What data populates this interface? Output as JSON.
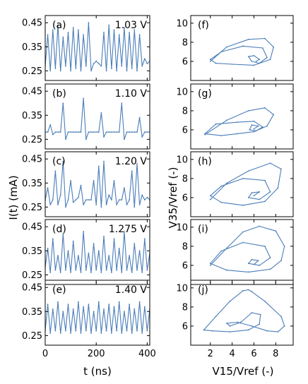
{
  "chart_data": [
    {
      "type": "line",
      "panel": "(a)",
      "annotation": "1.03 V",
      "xlim": [
        0,
        410
      ],
      "ylim": [
        0.21,
        0.48
      ],
      "yticks": [
        "0.45",
        "0.35",
        "0.25"
      ],
      "xticks": [],
      "ylabel": "",
      "xlabel": "",
      "series": [
        {
          "x": [
            0,
            10,
            20,
            30,
            40,
            50,
            60,
            70,
            80,
            90,
            100,
            110,
            120,
            130,
            140,
            150,
            160,
            170,
            180,
            190,
            200,
            210,
            220,
            230,
            240,
            250,
            260,
            270,
            280,
            290,
            300,
            310,
            320,
            330,
            340,
            350,
            360,
            370,
            380,
            390,
            400,
            410
          ],
          "y": [
            0.27,
            0.4,
            0.25,
            0.42,
            0.26,
            0.44,
            0.25,
            0.39,
            0.27,
            0.41,
            0.25,
            0.43,
            0.26,
            0.42,
            0.25,
            0.4,
            0.27,
            0.45,
            0.25,
            0.28,
            0.29,
            0.28,
            0.27,
            0.41,
            0.25,
            0.44,
            0.26,
            0.42,
            0.25,
            0.4,
            0.27,
            0.43,
            0.25,
            0.41,
            0.26,
            0.42,
            0.25,
            0.4,
            0.27,
            0.3,
            0.28,
            0.29
          ]
        }
      ]
    },
    {
      "type": "line",
      "panel": "(b)",
      "annotation": "1.10 V",
      "xlim": [
        0,
        410
      ],
      "ylim": [
        0.21,
        0.48
      ],
      "yticks": [
        "0.45",
        "0.35",
        "0.25"
      ],
      "xticks": [],
      "ylabel": "",
      "xlabel": "",
      "series": [
        {
          "x": [
            0,
            10,
            20,
            30,
            40,
            50,
            60,
            70,
            80,
            90,
            100,
            110,
            120,
            130,
            140,
            150,
            160,
            170,
            180,
            190,
            200,
            210,
            220,
            230,
            240,
            250,
            260,
            270,
            280,
            290,
            300,
            310,
            320,
            330,
            340,
            350,
            360,
            370,
            380,
            390,
            400,
            410
          ],
          "y": [
            0.28,
            0.28,
            0.31,
            0.27,
            0.28,
            0.28,
            0.28,
            0.4,
            0.25,
            0.28,
            0.28,
            0.28,
            0.28,
            0.28,
            0.28,
            0.42,
            0.25,
            0.28,
            0.28,
            0.28,
            0.28,
            0.28,
            0.36,
            0.26,
            0.28,
            0.28,
            0.28,
            0.28,
            0.28,
            0.28,
            0.4,
            0.25,
            0.28,
            0.28,
            0.28,
            0.28,
            0.28,
            0.34,
            0.26,
            0.28,
            0.28,
            0.28
          ]
        }
      ]
    },
    {
      "type": "line",
      "panel": "(c)",
      "annotation": "1.20 V",
      "xlim": [
        0,
        410
      ],
      "ylim": [
        0.21,
        0.48
      ],
      "yticks": [
        "0.45",
        "0.35",
        "0.25"
      ],
      "xticks": [],
      "ylabel": "",
      "xlabel": "",
      "series": [
        {
          "x": [
            0,
            10,
            20,
            30,
            40,
            50,
            60,
            70,
            80,
            90,
            100,
            110,
            120,
            130,
            140,
            150,
            160,
            170,
            180,
            190,
            200,
            210,
            220,
            230,
            240,
            250,
            260,
            270,
            280,
            290,
            300,
            310,
            320,
            330,
            340,
            350,
            360,
            370,
            380,
            390,
            400,
            410
          ],
          "y": [
            0.28,
            0.33,
            0.26,
            0.28,
            0.4,
            0.26,
            0.3,
            0.44,
            0.25,
            0.28,
            0.36,
            0.27,
            0.28,
            0.29,
            0.34,
            0.26,
            0.28,
            0.28,
            0.28,
            0.36,
            0.26,
            0.42,
            0.25,
            0.44,
            0.26,
            0.3,
            0.28,
            0.36,
            0.26,
            0.28,
            0.28,
            0.33,
            0.26,
            0.28,
            0.4,
            0.25,
            0.43,
            0.26,
            0.3,
            0.28,
            0.29,
            0.28
          ]
        }
      ]
    },
    {
      "type": "line",
      "panel": "(d)",
      "annotation": "1.275 V",
      "xlim": [
        0,
        410
      ],
      "ylim": [
        0.21,
        0.48
      ],
      "yticks": [
        "0.45",
        "0.35",
        "0.25"
      ],
      "xticks": [],
      "ylabel": "",
      "xlabel": "",
      "series": [
        {
          "x": [
            0,
            10,
            20,
            30,
            40,
            50,
            60,
            70,
            80,
            90,
            100,
            110,
            120,
            130,
            140,
            150,
            160,
            170,
            180,
            190,
            200,
            210,
            220,
            230,
            240,
            250,
            260,
            270,
            280,
            290,
            300,
            310,
            320,
            330,
            340,
            350,
            360,
            370,
            380,
            390,
            400,
            410
          ],
          "y": [
            0.28,
            0.36,
            0.26,
            0.4,
            0.27,
            0.33,
            0.26,
            0.42,
            0.27,
            0.35,
            0.26,
            0.39,
            0.27,
            0.33,
            0.26,
            0.43,
            0.27,
            0.34,
            0.26,
            0.38,
            0.27,
            0.35,
            0.26,
            0.41,
            0.27,
            0.33,
            0.26,
            0.4,
            0.27,
            0.36,
            0.26,
            0.43,
            0.27,
            0.33,
            0.26,
            0.38,
            0.27,
            0.35,
            0.26,
            0.4,
            0.27,
            0.34
          ]
        }
      ]
    },
    {
      "type": "line",
      "panel": "(e)",
      "annotation": "1.40 V",
      "xlim": [
        0,
        410
      ],
      "ylim": [
        0.21,
        0.48
      ],
      "yticks": [
        "0.45",
        "0.35",
        "0.25"
      ],
      "xticks": [
        "0",
        "200",
        "400"
      ],
      "ylabel": "",
      "xlabel": "t (ns)",
      "series": [
        {
          "x": [
            0,
            10,
            20,
            30,
            40,
            50,
            60,
            70,
            80,
            90,
            100,
            110,
            120,
            130,
            140,
            150,
            160,
            170,
            180,
            190,
            200,
            210,
            220,
            230,
            240,
            250,
            260,
            270,
            280,
            290,
            300,
            310,
            320,
            330,
            340,
            350,
            360,
            370,
            380,
            390,
            400,
            410
          ],
          "y": [
            0.27,
            0.38,
            0.26,
            0.36,
            0.27,
            0.39,
            0.26,
            0.35,
            0.27,
            0.38,
            0.26,
            0.36,
            0.27,
            0.39,
            0.26,
            0.37,
            0.27,
            0.38,
            0.26,
            0.35,
            0.27,
            0.39,
            0.26,
            0.36,
            0.27,
            0.38,
            0.26,
            0.37,
            0.27,
            0.39,
            0.26,
            0.35,
            0.27,
            0.38,
            0.26,
            0.36,
            0.27,
            0.39,
            0.26,
            0.37,
            0.27,
            0.36
          ]
        }
      ]
    },
    {
      "type": "line",
      "panel": "(f)",
      "xlim": [
        0.2,
        9.6
      ],
      "ylim": [
        4.0,
        10.8
      ],
      "yticks": [
        "10",
        "8",
        "6"
      ],
      "xticks": [],
      "xlabel": "",
      "ylabel": "",
      "series": [
        {
          "x": [
            2.0,
            3.5,
            5.5,
            7.0,
            7.8,
            7.5,
            6.0,
            4.0,
            2.5,
            2.0,
            3.0,
            5.0,
            6.8,
            7.2,
            6.5,
            5.8,
            5.5,
            6.0,
            6.5,
            6.2
          ],
          "y": [
            6.0,
            7.5,
            8.3,
            8.4,
            7.5,
            6.2,
            5.6,
            5.7,
            5.8,
            6.2,
            7.0,
            7.6,
            7.4,
            6.4,
            5.8,
            6.0,
            6.5,
            6.6,
            6.2,
            6.0
          ]
        }
      ]
    },
    {
      "type": "line",
      "panel": "(g)",
      "xlim": [
        0.2,
        9.6
      ],
      "ylim": [
        4.0,
        10.8
      ],
      "yticks": [
        "10",
        "8",
        "6"
      ],
      "xticks": [],
      "xlabel": "",
      "ylabel": "",
      "series": [
        {
          "x": [
            1.5,
            3.5,
            5.5,
            7.0,
            7.8,
            7.2,
            6.0,
            4.5,
            3.0,
            1.5,
            2.5,
            4.5,
            6.0,
            6.8,
            6.2,
            5.6,
            5.8,
            6.4,
            6.0
          ],
          "y": [
            5.5,
            7.0,
            8.0,
            8.3,
            7.6,
            6.4,
            5.8,
            5.6,
            5.4,
            5.6,
            6.6,
            6.8,
            6.9,
            6.3,
            5.9,
            6.0,
            6.5,
            6.4,
            6.1
          ]
        }
      ]
    },
    {
      "type": "line",
      "panel": "(h)",
      "xlim": [
        0.2,
        9.6
      ],
      "ylim": [
        4.0,
        10.8
      ],
      "yticks": [
        "10",
        "8",
        "6"
      ],
      "xticks": [],
      "xlabel": "",
      "ylabel": "V35/Vref (-)",
      "series": [
        {
          "x": [
            2.0,
            3.5,
            5.5,
            7.5,
            8.5,
            8.2,
            7.0,
            5.0,
            3.0,
            2.0,
            3.0,
            5.0,
            7.0,
            7.5,
            6.5,
            5.5,
            5.8,
            6.5,
            6.0
          ],
          "y": [
            5.8,
            7.5,
            8.8,
            9.6,
            9.0,
            7.0,
            5.6,
            5.2,
            5.5,
            6.2,
            7.2,
            8.0,
            7.8,
            6.6,
            5.8,
            6.0,
            6.5,
            6.6,
            6.2
          ]
        }
      ]
    },
    {
      "type": "line",
      "panel": "(i)",
      "xlim": [
        0.2,
        9.6
      ],
      "ylim": [
        4.0,
        10.8
      ],
      "yticks": [
        "10",
        "8",
        "6"
      ],
      "xticks": [],
      "xlabel": "",
      "ylabel": "",
      "series": [
        {
          "x": [
            2.0,
            3.5,
            5.0,
            6.5,
            8.0,
            8.8,
            8.5,
            7.5,
            5.5,
            3.5,
            2.0,
            3.0,
            5.0,
            7.0,
            7.5,
            6.5,
            5.5,
            5.8,
            6.4,
            6.0
          ],
          "y": [
            6.0,
            7.8,
            9.5,
            10.1,
            9.6,
            8.0,
            6.5,
            5.6,
            5.3,
            5.5,
            6.2,
            7.5,
            8.4,
            8.0,
            6.8,
            6.0,
            6.2,
            6.6,
            6.5,
            6.1
          ]
        }
      ]
    },
    {
      "type": "line",
      "panel": "(j)",
      "xlim": [
        0.2,
        9.6
      ],
      "ylim": [
        4.0,
        10.8
      ],
      "yticks": [
        "10",
        "8",
        "6"
      ],
      "xticks": [
        "2",
        "4",
        "6",
        "8"
      ],
      "xlabel": "V15/Vref (-)",
      "ylabel": "",
      "series": [
        {
          "x": [
            1.4,
            2.5,
            3.8,
            5.0,
            5.5,
            5.8,
            7.0,
            8.5,
            8.8,
            8.2,
            7.2,
            5.8,
            4.5,
            3.5,
            3.8,
            4.8,
            5.8,
            6.6,
            6.5,
            5.5,
            3.8,
            2.2,
            1.4
          ],
          "y": [
            5.6,
            7.0,
            8.6,
            9.7,
            9.8,
            9.6,
            8.6,
            7.0,
            6.0,
            5.4,
            5.5,
            6.0,
            6.4,
            6.3,
            6.0,
            6.4,
            7.4,
            7.2,
            6.2,
            5.6,
            5.4,
            5.5,
            5.6
          ]
        }
      ]
    }
  ],
  "shared": {
    "ylabel_left": "I(t) (mA)",
    "line_color": "#4a7db8"
  }
}
